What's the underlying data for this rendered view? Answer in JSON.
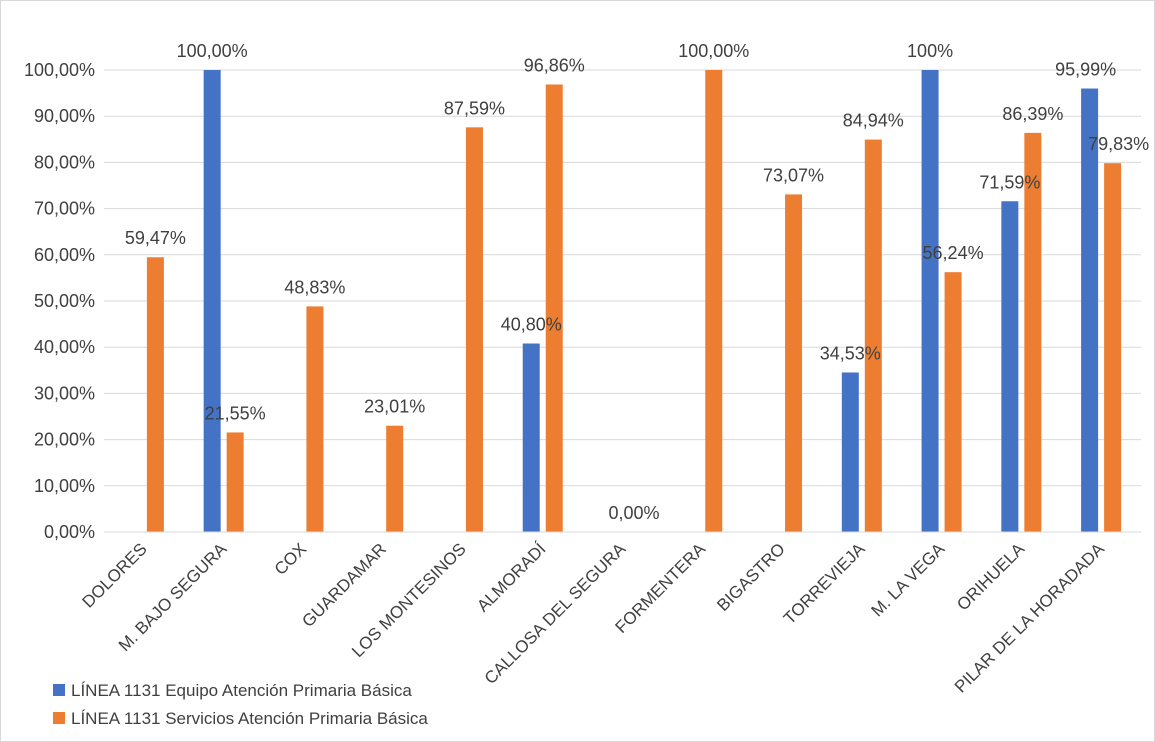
{
  "chart_data": {
    "type": "bar",
    "categories": [
      "DOLORES",
      "M. BAJO SEGURA",
      "COX",
      "GUARDAMAR",
      "LOS MONTESINOS",
      "ALMORADÍ",
      "CALLOSA DEL SEGURA",
      "FORMENTERA",
      "BIGASTRO",
      "TORREVIEJA",
      "M. LA VEGA",
      "ORIHUELA",
      "PILAR DE LA HORADADA"
    ],
    "series": [
      {
        "name": "LÍNEA 1131 Equipo Atención Primaria Básica",
        "color": "#4472c4",
        "values": [
          null,
          100.0,
          null,
          null,
          null,
          40.8,
          null,
          null,
          null,
          34.53,
          100.0,
          71.59,
          95.99
        ],
        "labels": [
          "",
          "100,00%",
          "",
          "",
          "",
          "40,80%",
          "",
          "",
          "",
          "34,53%",
          "100%",
          "71,59%",
          "95,99%"
        ]
      },
      {
        "name": "LÍNEA 1131 Servicios Atención Primaria Básica",
        "color": "#ed7d31",
        "values": [
          59.47,
          21.55,
          48.83,
          23.01,
          87.59,
          96.86,
          0.0,
          100.0,
          73.07,
          84.94,
          56.24,
          86.39,
          79.83
        ],
        "labels": [
          "59,47%",
          "21,55%",
          "48,83%",
          "23,01%",
          "87,59%",
          "96,86%",
          "0,00%",
          "100,00%",
          "73,07%",
          "84,94%",
          "56,24%",
          "86,39%",
          "79,83%"
        ]
      }
    ],
    "y_ticks": [
      "0,00%",
      "10,00%",
      "20,00%",
      "30,00%",
      "40,00%",
      "50,00%",
      "60,00%",
      "70,00%",
      "80,00%",
      "90,00%",
      "100,00%"
    ],
    "ylim": [
      0,
      100
    ],
    "grid": true,
    "legend_position": "bottom-left",
    "title": "",
    "xlabel": "",
    "ylabel": ""
  }
}
